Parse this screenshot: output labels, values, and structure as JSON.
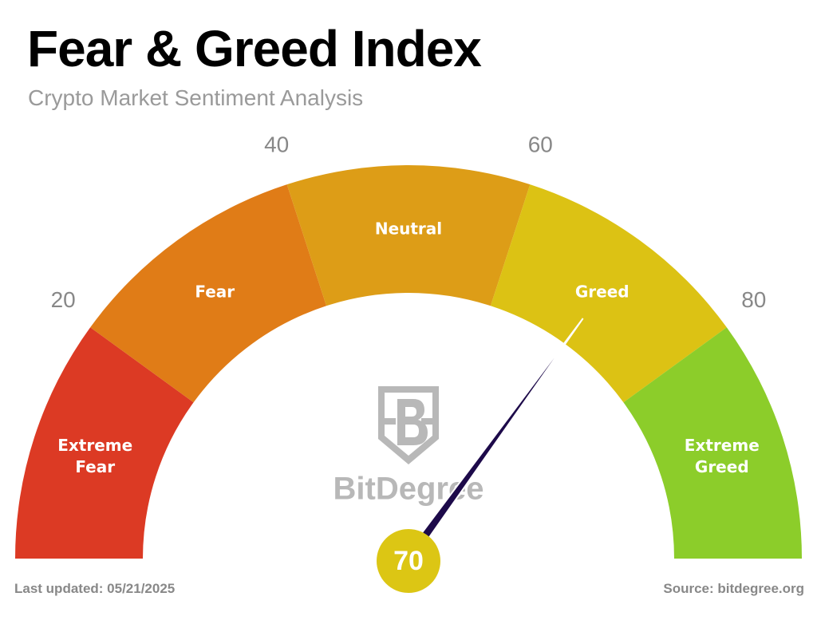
{
  "chart_data": {
    "type": "gauge",
    "title": "Fear & Greed Index",
    "subtitle": "Crypto Market Sentiment Analysis",
    "value": 70,
    "ylim": [
      0,
      100
    ],
    "yticks": [
      20,
      40,
      60,
      80
    ],
    "bands": [
      {
        "name": "Extreme Fear",
        "from": 0,
        "to": 20,
        "color": "#dc3a24"
      },
      {
        "name": "Fear",
        "from": 20,
        "to": 40,
        "color": "#e07c17"
      },
      {
        "name": "Neutral",
        "from": 40,
        "to": 60,
        "color": "#dd9d17"
      },
      {
        "name": "Greed",
        "from": 60,
        "to": 80,
        "color": "#dcc214"
      },
      {
        "name": "Extreme Greed",
        "from": 80,
        "to": 100,
        "color": "#8ccd2a"
      }
    ],
    "needle_color": "#1d0a4a",
    "value_color": "#dcc614",
    "logo_text": "BitDegree",
    "footer_left": "Last updated: 05/21/2025",
    "footer_right": "Source: bitdegree.org"
  }
}
